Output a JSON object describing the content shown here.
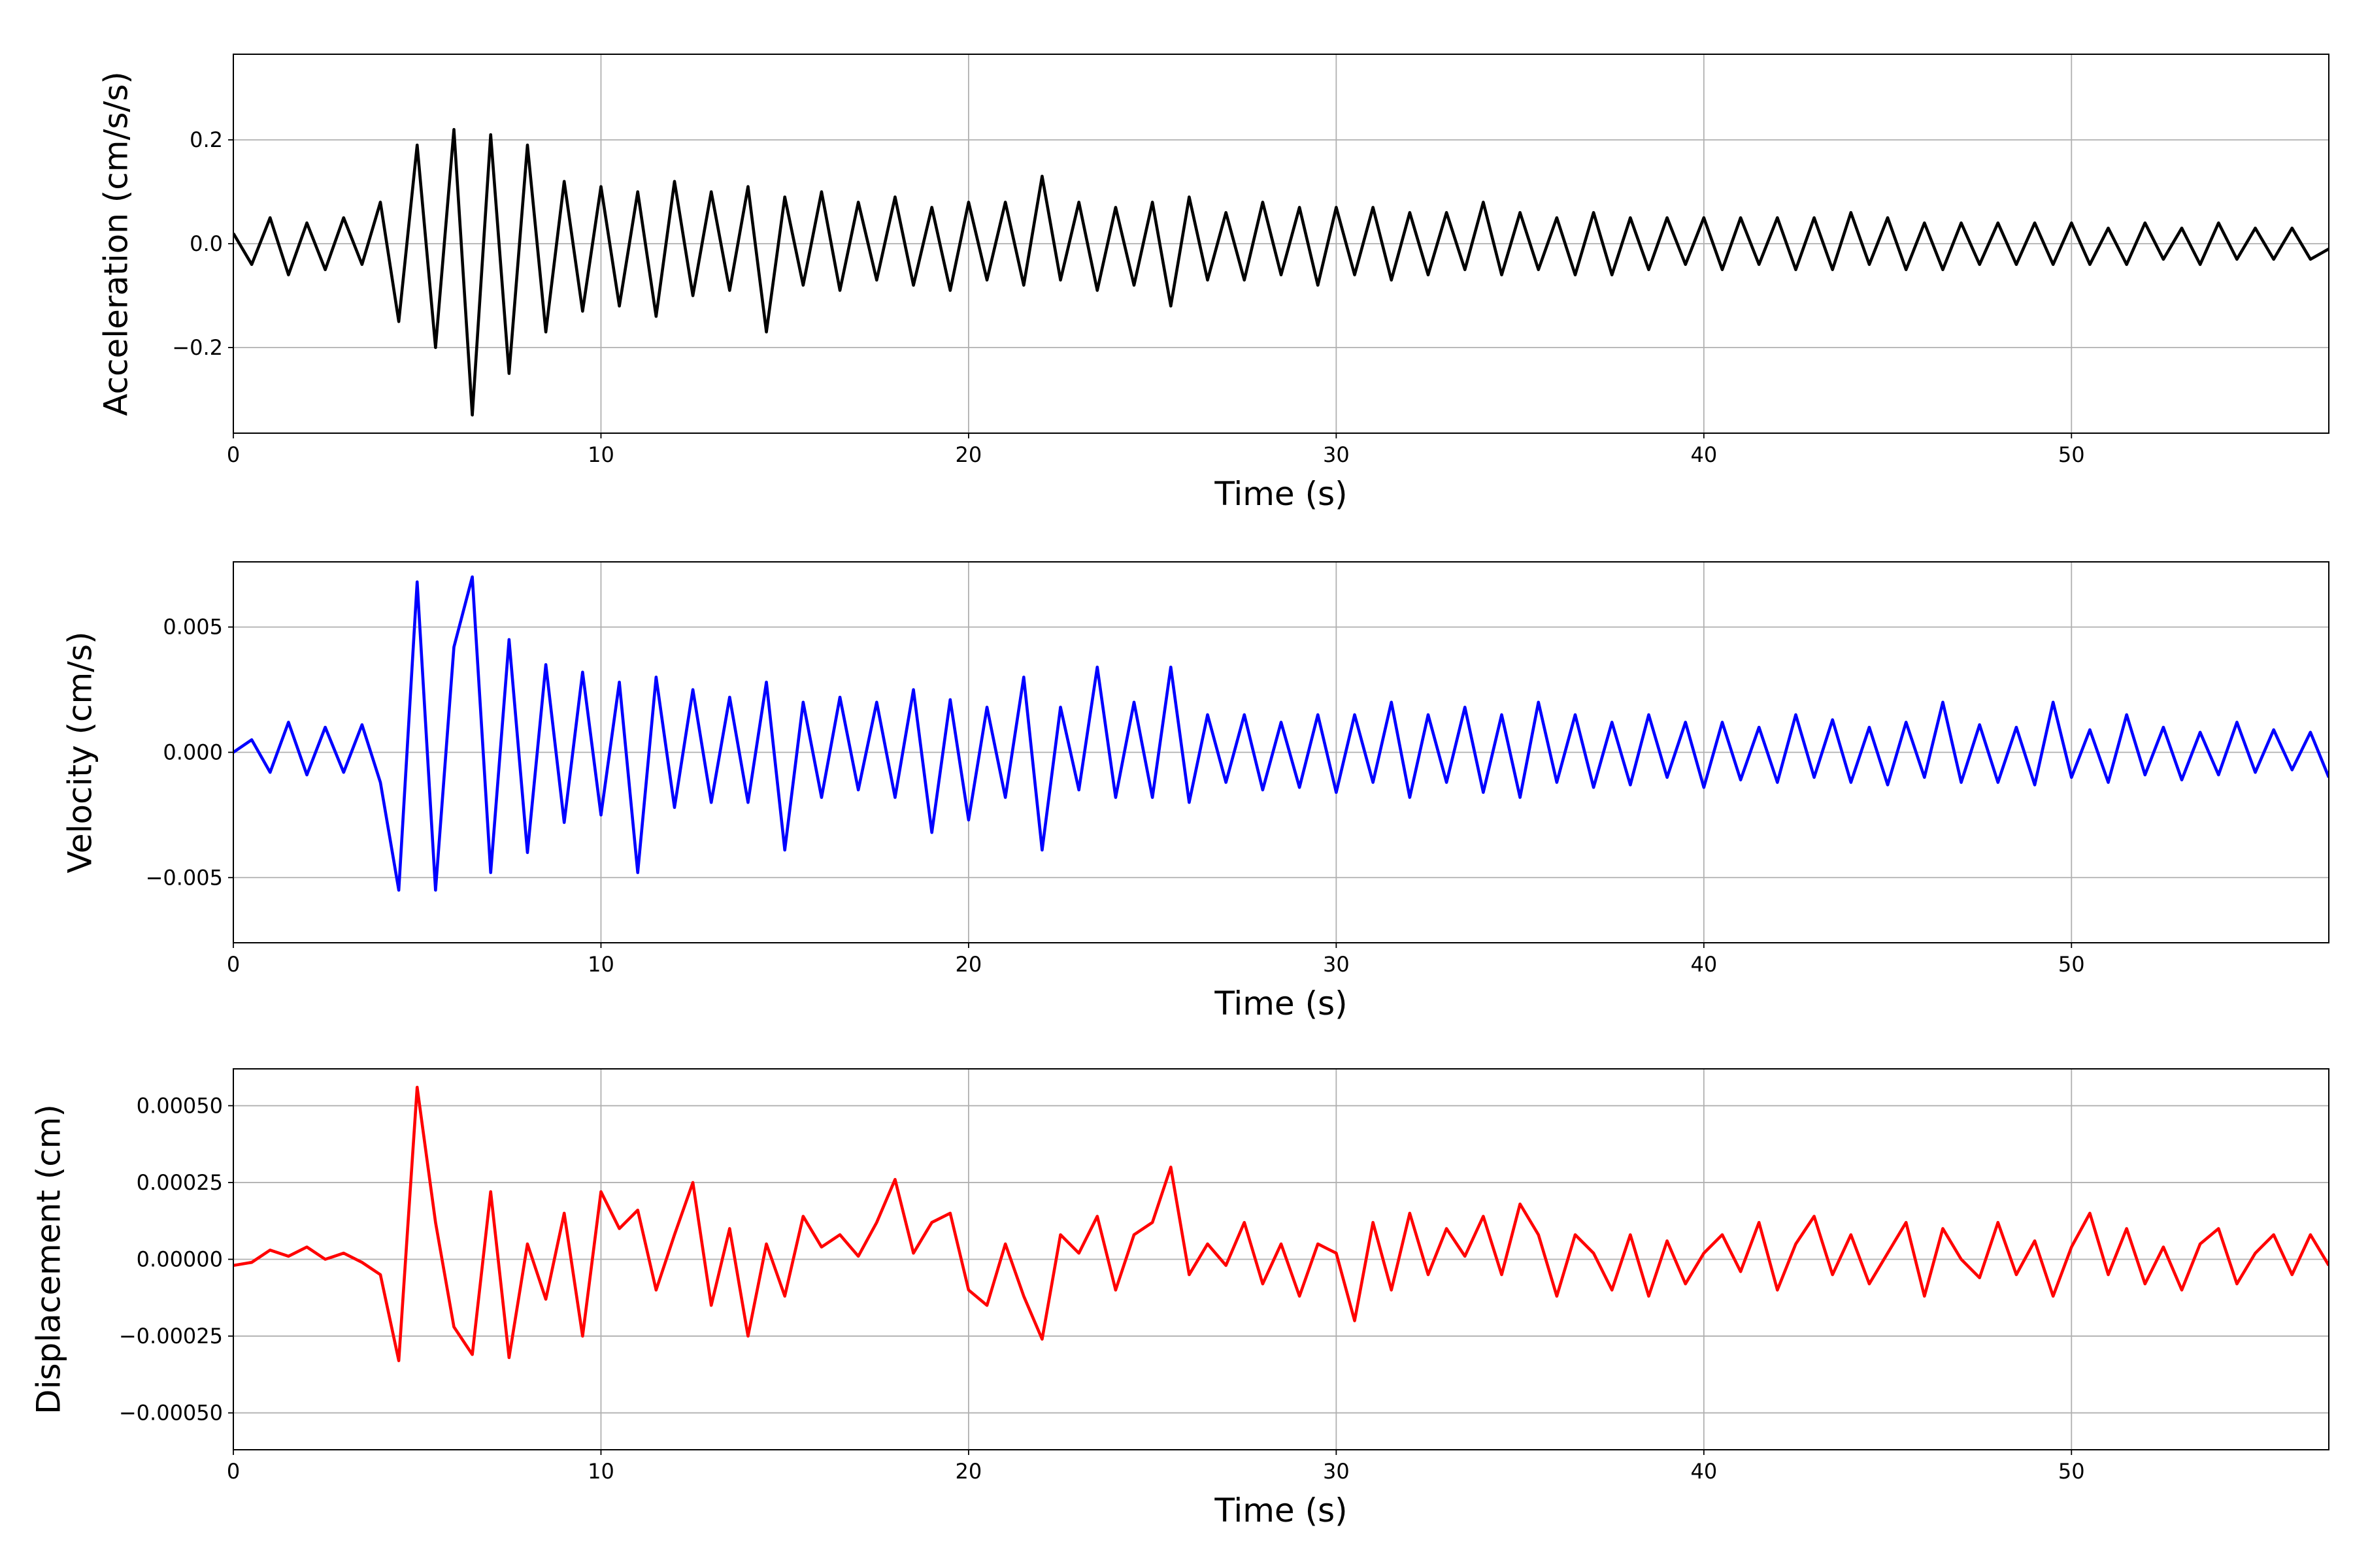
{
  "chart_data": [
    {
      "type": "line",
      "ylabel": "Acceleration (cm/s/s)",
      "xlabel": "Time (s)",
      "color": "#000000",
      "grid": true,
      "xlim": [
        0,
        57
      ],
      "xticks": [
        0,
        10,
        20,
        30,
        40,
        50
      ],
      "ylim": [
        -0.365,
        0.365
      ],
      "yticks": [
        {
          "value": -0.2,
          "label": "−0.2"
        },
        {
          "value": 0,
          "label": "0.0"
        },
        0.2
      ],
      "x": [
        0,
        0.5,
        1,
        1.5,
        2,
        2.5,
        3,
        3.5,
        4,
        4.5,
        5,
        5.5,
        6,
        6.5,
        7,
        7.5,
        8,
        8.5,
        9,
        9.5,
        10,
        10.5,
        11,
        11.5,
        12,
        12.5,
        13,
        13.5,
        14,
        14.5,
        15,
        15.5,
        16,
        16.5,
        17,
        17.5,
        18,
        18.5,
        19,
        19.5,
        20,
        20.5,
        21,
        21.5,
        22,
        22.5,
        23,
        23.5,
        24,
        24.5,
        25,
        25.5,
        26,
        26.5,
        27,
        27.5,
        28,
        28.5,
        29,
        29.5,
        30,
        30.5,
        31,
        31.5,
        32,
        32.5,
        33,
        33.5,
        34,
        34.5,
        35,
        35.5,
        36,
        36.5,
        37,
        37.5,
        38,
        38.5,
        39,
        39.5,
        40,
        40.5,
        41,
        41.5,
        42,
        42.5,
        43,
        43.5,
        44,
        44.5,
        45,
        45.5,
        46,
        46.5,
        47,
        47.5,
        48,
        48.5,
        49,
        49.5,
        50,
        50.5,
        51,
        51.5,
        52,
        52.5,
        53,
        53.5,
        54,
        54.5,
        55,
        55.5,
        56,
        56.5,
        57
      ],
      "values": [
        0.02,
        -0.04,
        0.05,
        -0.06,
        0.04,
        -0.05,
        0.05,
        -0.04,
        0.08,
        -0.15,
        0.19,
        -0.2,
        0.22,
        -0.33,
        0.21,
        -0.25,
        0.19,
        -0.17,
        0.12,
        -0.13,
        0.11,
        -0.12,
        0.1,
        -0.14,
        0.12,
        -0.1,
        0.1,
        -0.09,
        0.11,
        -0.17,
        0.09,
        -0.08,
        0.1,
        -0.09,
        0.08,
        -0.07,
        0.09,
        -0.08,
        0.07,
        -0.09,
        0.08,
        -0.07,
        0.08,
        -0.08,
        0.13,
        -0.07,
        0.08,
        -0.09,
        0.07,
        -0.08,
        0.08,
        -0.12,
        0.09,
        -0.07,
        0.06,
        -0.07,
        0.08,
        -0.06,
        0.07,
        -0.08,
        0.07,
        -0.06,
        0.07,
        -0.07,
        0.06,
        -0.06,
        0.06,
        -0.05,
        0.08,
        -0.06,
        0.06,
        -0.05,
        0.05,
        -0.06,
        0.06,
        -0.06,
        0.05,
        -0.05,
        0.05,
        -0.04,
        0.05,
        -0.05,
        0.05,
        -0.04,
        0.05,
        -0.05,
        0.05,
        -0.05,
        0.06,
        -0.04,
        0.05,
        -0.05,
        0.04,
        -0.05,
        0.04,
        -0.04,
        0.04,
        -0.04,
        0.04,
        -0.04,
        0.04,
        -0.04,
        0.03,
        -0.04,
        0.04,
        -0.03,
        0.03,
        -0.04,
        0.04,
        -0.03,
        0.03,
        -0.03,
        0.03,
        -0.03,
        -0.01
      ]
    },
    {
      "type": "line",
      "ylabel": "Velocity (cm/s)",
      "xlabel": "Time (s)",
      "color": "#0000ff",
      "grid": true,
      "xlim": [
        0,
        57
      ],
      "xticks": [
        0,
        10,
        20,
        30,
        40,
        50
      ],
      "ylim": [
        -0.0076,
        0.0076
      ],
      "yticks": [
        {
          "value": -0.005,
          "label": "−0.005"
        },
        {
          "value": 0,
          "label": "0.000"
        },
        0.005
      ],
      "x": [
        0,
        0.5,
        1,
        1.5,
        2,
        2.5,
        3,
        3.5,
        4,
        4.5,
        5,
        5.5,
        6,
        6.5,
        7,
        7.5,
        8,
        8.5,
        9,
        9.5,
        10,
        10.5,
        11,
        11.5,
        12,
        12.5,
        13,
        13.5,
        14,
        14.5,
        15,
        15.5,
        16,
        16.5,
        17,
        17.5,
        18,
        18.5,
        19,
        19.5,
        20,
        20.5,
        21,
        21.5,
        22,
        22.5,
        23,
        23.5,
        24,
        24.5,
        25,
        25.5,
        26,
        26.5,
        27,
        27.5,
        28,
        28.5,
        29,
        29.5,
        30,
        30.5,
        31,
        31.5,
        32,
        32.5,
        33,
        33.5,
        34,
        34.5,
        35,
        35.5,
        36,
        36.5,
        37,
        37.5,
        38,
        38.5,
        39,
        39.5,
        40,
        40.5,
        41,
        41.5,
        42,
        42.5,
        43,
        43.5,
        44,
        44.5,
        45,
        45.5,
        46,
        46.5,
        47,
        47.5,
        48,
        48.5,
        49,
        49.5,
        50,
        50.5,
        51,
        51.5,
        52,
        52.5,
        53,
        53.5,
        54,
        54.5,
        55,
        55.5,
        56,
        56.5,
        57
      ],
      "values": [
        0,
        0.0005,
        -0.0008,
        0.0012,
        -0.0009,
        0.001,
        -0.0008,
        0.0011,
        -0.0012,
        -0.0055,
        0.0068,
        -0.0055,
        0.0042,
        0.007,
        -0.0048,
        0.0045,
        -0.004,
        0.0035,
        -0.0028,
        0.0032,
        -0.0025,
        0.0028,
        -0.0048,
        0.003,
        -0.0022,
        0.0025,
        -0.002,
        0.0022,
        -0.002,
        0.0028,
        -0.0039,
        0.002,
        -0.0018,
        0.0022,
        -0.0015,
        0.002,
        -0.0018,
        0.0025,
        -0.0032,
        0.0021,
        -0.0027,
        0.0018,
        -0.0018,
        0.003,
        -0.0039,
        0.0018,
        -0.0015,
        0.0034,
        -0.0018,
        0.002,
        -0.0018,
        0.0034,
        -0.002,
        0.0015,
        -0.0012,
        0.0015,
        -0.0015,
        0.0012,
        -0.0014,
        0.0015,
        -0.0016,
        0.0015,
        -0.0012,
        0.002,
        -0.0018,
        0.0015,
        -0.0012,
        0.0018,
        -0.0016,
        0.0015,
        -0.0018,
        0.002,
        -0.0012,
        0.0015,
        -0.0014,
        0.0012,
        -0.0013,
        0.0015,
        -0.001,
        0.0012,
        -0.0014,
        0.0012,
        -0.0011,
        0.001,
        -0.0012,
        0.0015,
        -0.001,
        0.0013,
        -0.0012,
        0.001,
        -0.0013,
        0.0012,
        -0.001,
        0.002,
        -0.0012,
        0.0011,
        -0.0012,
        0.001,
        -0.0013,
        0.002,
        -0.001,
        0.0009,
        -0.0012,
        0.0015,
        -0.0009,
        0.001,
        -0.0011,
        0.0008,
        -0.0009,
        0.0012,
        -0.0008,
        0.0009,
        -0.0007,
        0.0008,
        -0.001
      ]
    },
    {
      "type": "line",
      "ylabel": "Displacement (cm)",
      "xlabel": "Time (s)",
      "color": "#ff0000",
      "grid": true,
      "xlim": [
        0,
        57
      ],
      "xticks": [
        0,
        10,
        20,
        30,
        40,
        50
      ],
      "ylim": [
        -0.00062,
        0.00062
      ],
      "yticks": [
        {
          "value": -0.0005,
          "label": "−0.00050"
        },
        {
          "value": -0.00025,
          "label": "−0.00025"
        },
        {
          "value": 0,
          "label": "0.00000"
        },
        {
          "value": 0.00025,
          "label": "0.00025"
        },
        {
          "value": 0.0005,
          "label": "0.00050"
        }
      ],
      "x": [
        0,
        0.5,
        1,
        1.5,
        2,
        2.5,
        3,
        3.5,
        4,
        4.5,
        5,
        5.5,
        6,
        6.5,
        7,
        7.5,
        8,
        8.5,
        9,
        9.5,
        10,
        10.5,
        11,
        11.5,
        12,
        12.5,
        13,
        13.5,
        14,
        14.5,
        15,
        15.5,
        16,
        16.5,
        17,
        17.5,
        18,
        18.5,
        19,
        19.5,
        20,
        20.5,
        21,
        21.5,
        22,
        22.5,
        23,
        23.5,
        24,
        24.5,
        25,
        25.5,
        26,
        26.5,
        27,
        27.5,
        28,
        28.5,
        29,
        29.5,
        30,
        30.5,
        31,
        31.5,
        32,
        32.5,
        33,
        33.5,
        34,
        34.5,
        35,
        35.5,
        36,
        36.5,
        37,
        37.5,
        38,
        38.5,
        39,
        39.5,
        40,
        40.5,
        41,
        41.5,
        42,
        42.5,
        43,
        43.5,
        44,
        44.5,
        45,
        45.5,
        46,
        46.5,
        47,
        47.5,
        48,
        48.5,
        49,
        49.5,
        50,
        50.5,
        51,
        51.5,
        52,
        52.5,
        53,
        53.5,
        54,
        54.5,
        55,
        55.5,
        56,
        56.5,
        57
      ],
      "values": [
        -2e-05,
        -1e-05,
        3e-05,
        1e-05,
        4e-05,
        0,
        2e-05,
        -1e-05,
        -5e-05,
        -0.00033,
        0.00056,
        0.00012,
        -0.00022,
        -0.00031,
        0.00022,
        -0.00032,
        5e-05,
        -0.00013,
        0.00015,
        -0.00025,
        0.00022,
        0.0001,
        0.00016,
        -0.0001,
        8e-05,
        0.00025,
        -0.00015,
        0.0001,
        -0.00025,
        5e-05,
        -0.00012,
        0.00014,
        4e-05,
        8e-05,
        1e-05,
        0.00012,
        0.00026,
        2e-05,
        0.00012,
        0.00015,
        -0.0001,
        -0.00015,
        5e-05,
        -0.00012,
        -0.00026,
        8e-05,
        2e-05,
        0.00014,
        -0.0001,
        8e-05,
        0.00012,
        0.0003,
        -5e-05,
        5e-05,
        -2e-05,
        0.00012,
        -8e-05,
        5e-05,
        -0.00012,
        5e-05,
        2e-05,
        -0.0002,
        0.00012,
        -0.0001,
        0.00015,
        -5e-05,
        0.0001,
        1e-05,
        0.00014,
        -5e-05,
        0.00018,
        8e-05,
        -0.00012,
        8e-05,
        2e-05,
        -0.0001,
        8e-05,
        -0.00012,
        6e-05,
        -8e-05,
        2e-05,
        8e-05,
        -4e-05,
        0.00012,
        -0.0001,
        5e-05,
        0.00014,
        -5e-05,
        8e-05,
        -8e-05,
        2e-05,
        0.00012,
        -0.00012,
        0.0001,
        0,
        -6e-05,
        0.00012,
        -5e-05,
        6e-05,
        -0.00012,
        4e-05,
        0.00015,
        -5e-05,
        0.0001,
        -8e-05,
        4e-05,
        -0.0001,
        5e-05,
        0.0001,
        -8e-05,
        2e-05,
        8e-05,
        -5e-05,
        8e-05,
        -2e-05
      ]
    }
  ]
}
